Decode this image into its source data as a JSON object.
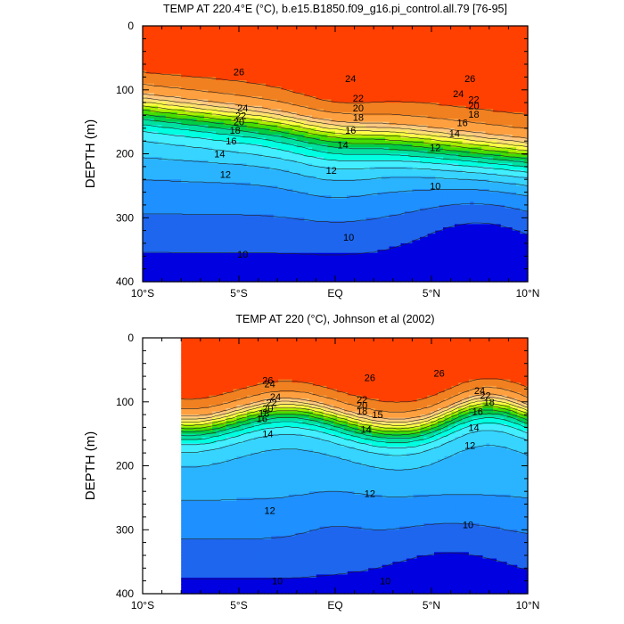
{
  "chart_data": [
    {
      "type": "heatmap",
      "title": "TEMP AT 220.4°E (°C), b.e15.B1850.f09_g16.pi_control.all.79 [76-95]",
      "ylabel": "DEPTH (m)",
      "xlabel": "",
      "x_ticks": [
        "10°S",
        "5°S",
        "EQ",
        "5°N",
        "10°N"
      ],
      "y_ticks": [
        "0",
        "100",
        "200",
        "300",
        "400"
      ],
      "xlim": [
        -10,
        10
      ],
      "ylim": [
        0,
        400
      ],
      "data_xmin": -10,
      "contour_labels": [
        {
          "text": "26",
          "lat": -5.0,
          "depth": 72
        },
        {
          "text": "24",
          "lat": 0.8,
          "depth": 82
        },
        {
          "text": "26",
          "lat": 7.0,
          "depth": 82
        },
        {
          "text": "24",
          "lat": -4.8,
          "depth": 128
        },
        {
          "text": "22",
          "lat": -4.9,
          "depth": 140
        },
        {
          "text": "20",
          "lat": -5.0,
          "depth": 150
        },
        {
          "text": "18",
          "lat": -5.2,
          "depth": 163
        },
        {
          "text": "16",
          "lat": -5.4,
          "depth": 180
        },
        {
          "text": "14",
          "lat": -6.0,
          "depth": 200
        },
        {
          "text": "12",
          "lat": -5.7,
          "depth": 232
        },
        {
          "text": "22",
          "lat": 1.2,
          "depth": 113
        },
        {
          "text": "20",
          "lat": 1.2,
          "depth": 128
        },
        {
          "text": "18",
          "lat": 1.2,
          "depth": 143
        },
        {
          "text": "16",
          "lat": 0.8,
          "depth": 163
        },
        {
          "text": "14",
          "lat": 0.4,
          "depth": 186
        },
        {
          "text": "12",
          "lat": -0.2,
          "depth": 226
        },
        {
          "text": "24",
          "lat": 6.4,
          "depth": 106
        },
        {
          "text": "22",
          "lat": 7.2,
          "depth": 115
        },
        {
          "text": "20",
          "lat": 7.2,
          "depth": 125
        },
        {
          "text": "18",
          "lat": 7.2,
          "depth": 138
        },
        {
          "text": "16",
          "lat": 6.6,
          "depth": 151
        },
        {
          "text": "14",
          "lat": 6.2,
          "depth": 168
        },
        {
          "text": "12",
          "lat": 5.2,
          "depth": 190
        },
        {
          "text": "10",
          "lat": 5.2,
          "depth": 250
        },
        {
          "text": "10",
          "lat": 0.7,
          "depth": 330
        },
        {
          "text": "10",
          "lat": -4.8,
          "depth": 357
        }
      ]
    },
    {
      "type": "heatmap",
      "title": "TEMP AT 220 (°C), Johnson et al (2002)",
      "ylabel": "DEPTH (m)",
      "xlabel": "",
      "x_ticks": [
        "10°S",
        "5°S",
        "EQ",
        "5°N",
        "10°N"
      ],
      "y_ticks": [
        "0",
        "100",
        "200",
        "300",
        "400"
      ],
      "xlim": [
        -10,
        10
      ],
      "ylim": [
        0,
        400
      ],
      "data_xmin": -8,
      "contour_labels": [
        {
          "text": "26",
          "lat": 1.8,
          "depth": 62
        },
        {
          "text": "26",
          "lat": 5.4,
          "depth": 55
        },
        {
          "text": "24",
          "lat": -3.4,
          "depth": 72
        },
        {
          "text": "26",
          "lat": -3.5,
          "depth": 66
        },
        {
          "text": "24",
          "lat": -3.1,
          "depth": 92
        },
        {
          "text": "22",
          "lat": -3.3,
          "depth": 101
        },
        {
          "text": "20",
          "lat": -3.5,
          "depth": 110
        },
        {
          "text": "18",
          "lat": -3.7,
          "depth": 118
        },
        {
          "text": "16",
          "lat": -3.8,
          "depth": 126
        },
        {
          "text": "14",
          "lat": -3.5,
          "depth": 150
        },
        {
          "text": "22",
          "lat": 1.4,
          "depth": 96
        },
        {
          "text": "20",
          "lat": 1.4,
          "depth": 105
        },
        {
          "text": "18",
          "lat": 1.4,
          "depth": 114
        },
        {
          "text": "15",
          "lat": 2.2,
          "depth": 120
        },
        {
          "text": "14",
          "lat": 1.6,
          "depth": 143
        },
        {
          "text": "24",
          "lat": 7.5,
          "depth": 82
        },
        {
          "text": "22",
          "lat": 7.8,
          "depth": 90
        },
        {
          "text": "18",
          "lat": 8.0,
          "depth": 100
        },
        {
          "text": "16",
          "lat": 7.4,
          "depth": 115
        },
        {
          "text": "14",
          "lat": 7.2,
          "depth": 140
        },
        {
          "text": "12",
          "lat": 7.0,
          "depth": 168
        },
        {
          "text": "12",
          "lat": 1.8,
          "depth": 243
        },
        {
          "text": "12",
          "lat": -3.4,
          "depth": 270
        },
        {
          "text": "10",
          "lat": 6.9,
          "depth": 292
        },
        {
          "text": "10",
          "lat": -3.0,
          "depth": 380
        },
        {
          "text": "10",
          "lat": 2.6,
          "depth": 380
        }
      ]
    }
  ],
  "colors": {
    "level_fills": [
      "#0000e0",
      "#1e66ee",
      "#1e90ff",
      "#2ab4ff",
      "#36d4ff",
      "#42eeff",
      "#00ffe0",
      "#00e0a0",
      "#00cc44",
      "#44dd00",
      "#aaee00",
      "#ffff44",
      "#ffe070",
      "#ffc880",
      "#ffa040",
      "#f08020",
      "#ff4000"
    ],
    "frame": "#000000"
  }
}
